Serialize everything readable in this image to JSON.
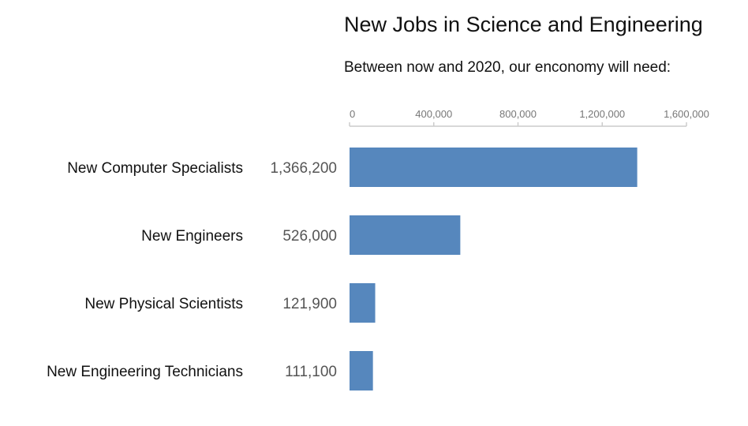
{
  "chart_data": {
    "type": "bar",
    "orientation": "horizontal",
    "title": "New Jobs in Science and Engineering",
    "subtitle": "Between now and 2020, our enconomy will need:",
    "categories": [
      "New Computer Specialists",
      "New Engineers",
      "New Physical Scientists",
      "New Engineering Technicians"
    ],
    "values": [
      1366200,
      526000,
      121900,
      111100
    ],
    "value_labels": [
      "1,366,200",
      "526,000",
      "121,900",
      "111,100"
    ],
    "xticks": [
      0,
      400000,
      800000,
      1200000,
      1600000
    ],
    "xtick_labels": [
      "0",
      "400,000",
      "800,000",
      "1,200,000",
      "1,600,000"
    ],
    "xlim": [
      0,
      1600000
    ],
    "axis_position": "top",
    "grid": false,
    "bar_color": "#5687bd",
    "axis_color": "#cccccc"
  }
}
